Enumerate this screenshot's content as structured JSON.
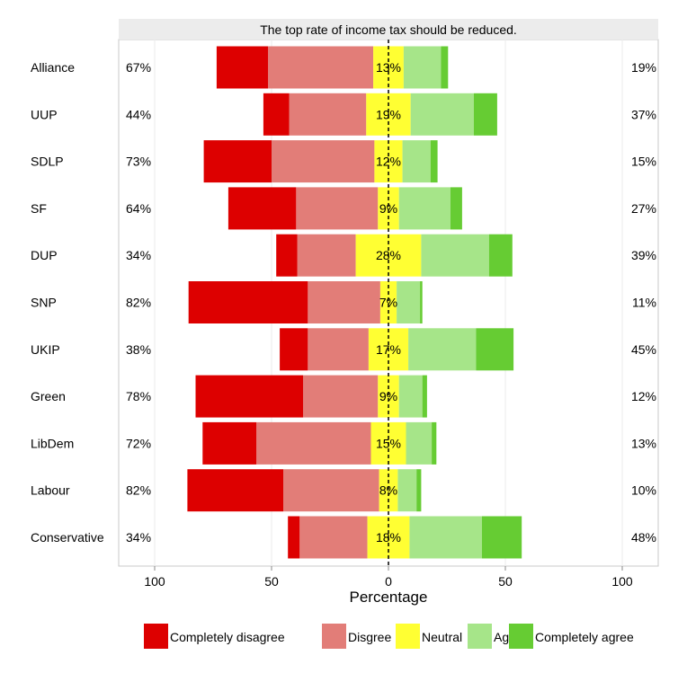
{
  "chart_data": {
    "type": "bar",
    "subtype": "diverging-stacked-likert",
    "title": "The top rate of income tax should be reduced.",
    "xlabel": "Percentage",
    "ylabel": "",
    "xlim": [
      -100,
      100
    ],
    "x_ticks": [
      -100,
      -50,
      0,
      50,
      100
    ],
    "x_tick_labels": [
      "100",
      "50",
      "0",
      "50",
      "100"
    ],
    "grid": true,
    "legend_position": "bottom",
    "categories": [
      "Alliance",
      "UUP",
      "SDLP",
      "SF",
      "DUP",
      "SNP",
      "UKIP",
      "Green",
      "LibDem",
      "Labour",
      "Conservative"
    ],
    "series": [
      {
        "name": "Completely disagree",
        "color": "#dd0000",
        "values": [
          22,
          11,
          29,
          29,
          9,
          51,
          12,
          46,
          23,
          41,
          5
        ]
      },
      {
        "name": "Disgree",
        "color": "#e27d78",
        "values": [
          45,
          33,
          44,
          35,
          25,
          31,
          26,
          32,
          49,
          41,
          29
        ]
      },
      {
        "name": "Neutral",
        "color": "#ffff33",
        "values": [
          13,
          19,
          12,
          9,
          28,
          7,
          17,
          9,
          15,
          8,
          18
        ]
      },
      {
        "name": "Agree",
        "color": "#a6e589",
        "values": [
          16,
          27,
          12,
          22,
          29,
          10,
          29,
          10,
          11,
          8,
          31
        ]
      },
      {
        "name": "Completely agree",
        "color": "#66cc33",
        "values": [
          3,
          10,
          3,
          5,
          10,
          1,
          16,
          2,
          2,
          2,
          17
        ]
      }
    ],
    "left_labels": [
      "67%",
      "44%",
      "73%",
      "64%",
      "34%",
      "82%",
      "38%",
      "78%",
      "72%",
      "82%",
      "34%"
    ],
    "center_labels": [
      "13%",
      "19%",
      "12%",
      "9%",
      "28%",
      "7%",
      "17%",
      "9%",
      "15%",
      "8%",
      "18%"
    ],
    "right_labels": [
      "19%",
      "37%",
      "15%",
      "27%",
      "39%",
      "11%",
      "45%",
      "12%",
      "13%",
      "10%",
      "48%"
    ]
  }
}
